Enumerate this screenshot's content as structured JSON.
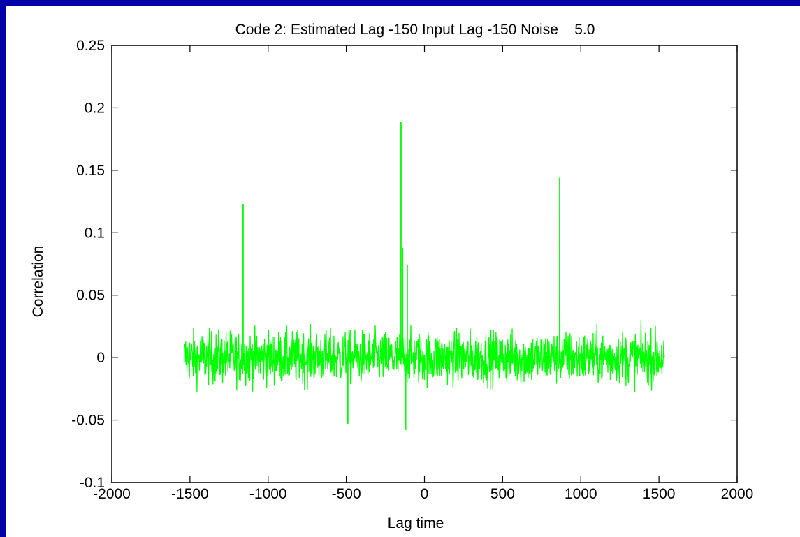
{
  "colors": {
    "border": "#0000a8",
    "background": "#ffffff",
    "axes": "#000000",
    "series": "#00ff00"
  },
  "chart_data": {
    "type": "line",
    "title": "Code 2: Estimated Lag -150 Input Lag -150 Noise    5.0",
    "xlabel": "Lag time",
    "ylabel": "Correlation",
    "xlim": [
      -2000,
      2000
    ],
    "ylim": [
      -0.1,
      0.25
    ],
    "xticks": [
      -2000,
      -1500,
      -1000,
      -500,
      0,
      500,
      1000,
      1500,
      2000
    ],
    "xtick_labels": [
      "-2000",
      "-1500",
      "-1000",
      "-500",
      "0",
      "500",
      "1000",
      "1500",
      "2000"
    ],
    "yticks": [
      -0.1,
      -0.05,
      0,
      0.05,
      0.1,
      0.15,
      0.2,
      0.25
    ],
    "ytick_labels": [
      "-0.1",
      "-0.05",
      "0",
      "0.05",
      "0.1",
      "0.15",
      "0.2",
      "0.25"
    ],
    "grid": false,
    "legend": "none",
    "series": [
      {
        "x_range": [
          -1535,
          1535
        ],
        "noise_band": [
          -0.04,
          0.04
        ],
        "peaks": [
          {
            "x": -1160,
            "y": 0.123
          },
          {
            "x": -150,
            "y": 0.189
          },
          {
            "x": -140,
            "y": 0.088
          },
          {
            "x": -110,
            "y": 0.074
          },
          {
            "x": 865,
            "y": 0.144
          },
          {
            "x": -120,
            "y": -0.058
          },
          {
            "x": -490,
            "y": -0.053
          }
        ]
      }
    ]
  }
}
